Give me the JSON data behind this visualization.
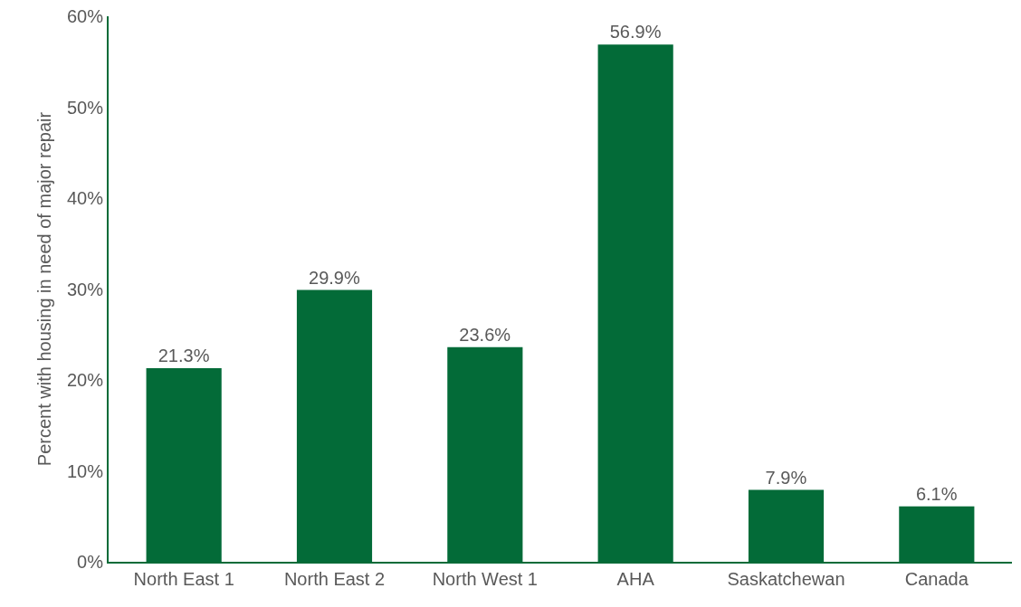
{
  "chart_data": {
    "type": "bar",
    "ylabel": "Percent with housing in need of major repair",
    "categories": [
      "North East 1",
      "North East 2",
      "North West 1",
      "AHA",
      "Saskatchewan",
      "Canada"
    ],
    "values": [
      21.3,
      29.9,
      23.6,
      56.9,
      7.9,
      6.1
    ],
    "value_labels": [
      "21.3%",
      "29.9%",
      "23.6%",
      "56.9%",
      "7.9%",
      "6.1%"
    ],
    "color": "#036b38",
    "ylim": [
      0,
      60
    ],
    "yticks": [
      {
        "value": 0,
        "label": "0%"
      },
      {
        "value": 10,
        "label": "10%"
      },
      {
        "value": 20,
        "label": "20%"
      },
      {
        "value": 30,
        "label": "30%"
      },
      {
        "value": 40,
        "label": "40%"
      },
      {
        "value": 50,
        "label": "50%"
      },
      {
        "value": 60,
        "label": "60%"
      }
    ],
    "grid": false
  }
}
